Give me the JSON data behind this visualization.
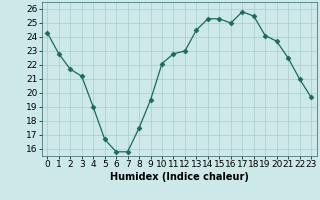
{
  "x": [
    0,
    1,
    2,
    3,
    4,
    5,
    6,
    7,
    8,
    9,
    10,
    11,
    12,
    13,
    14,
    15,
    16,
    17,
    18,
    19,
    20,
    21,
    22,
    23
  ],
  "y": [
    24.3,
    22.8,
    21.7,
    21.2,
    19.0,
    16.7,
    15.8,
    15.8,
    17.5,
    19.5,
    22.1,
    22.8,
    23.0,
    24.5,
    25.3,
    25.3,
    25.0,
    25.8,
    25.5,
    24.1,
    23.7,
    22.5,
    21.0,
    19.7
  ],
  "line_color": "#1a6b5a",
  "marker": "D",
  "marker_size": 2.5,
  "bg_color": "#cce8e8",
  "grid_color": "#aacccc",
  "xlabel": "Humidex (Indice chaleur)",
  "xlim": [
    -0.5,
    23.5
  ],
  "ylim": [
    15.5,
    26.5
  ],
  "yticks": [
    16,
    17,
    18,
    19,
    20,
    21,
    22,
    23,
    24,
    25,
    26
  ],
  "xticks": [
    0,
    1,
    2,
    3,
    4,
    5,
    6,
    7,
    8,
    9,
    10,
    11,
    12,
    13,
    14,
    15,
    16,
    17,
    18,
    19,
    20,
    21,
    22,
    23
  ],
  "xlabel_fontsize": 7,
  "tick_fontsize": 6.5
}
